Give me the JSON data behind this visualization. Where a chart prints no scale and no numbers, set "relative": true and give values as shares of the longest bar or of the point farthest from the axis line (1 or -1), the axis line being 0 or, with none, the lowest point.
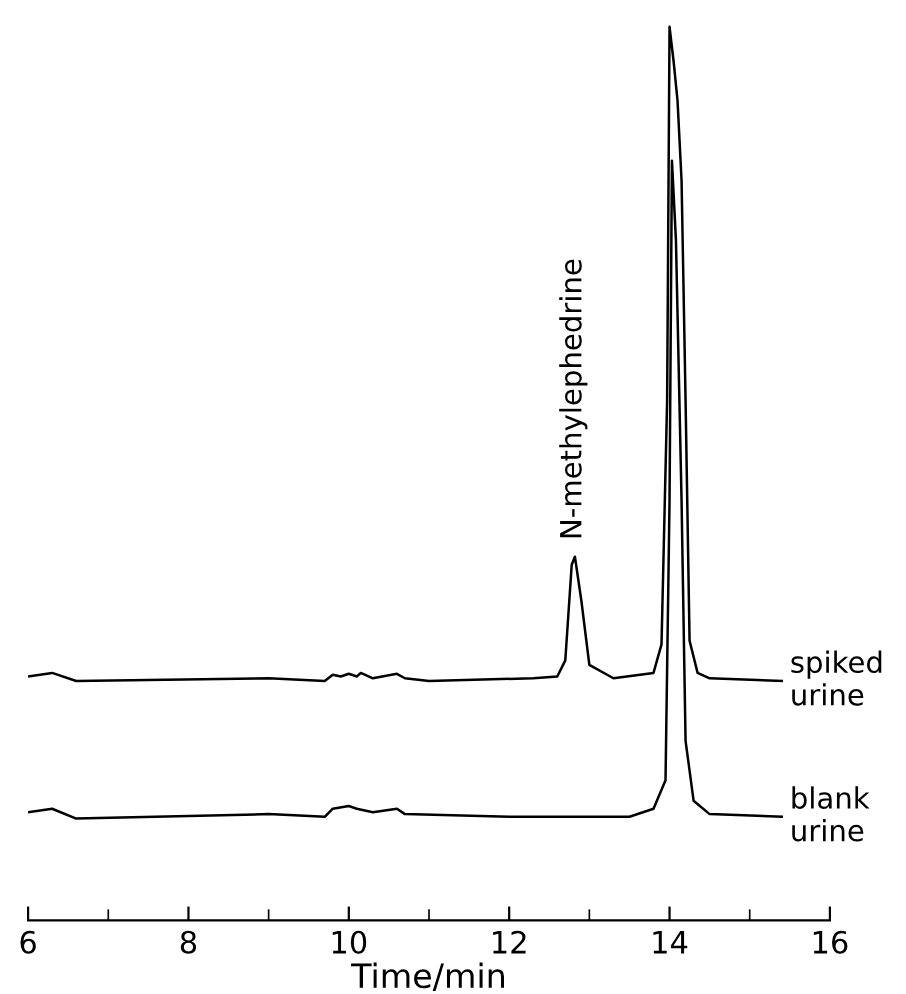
{
  "chart_data": {
    "type": "line",
    "xlabel": "Time/min",
    "relative": true,
    "xlim": [
      6,
      16
    ],
    "xticks": [
      6,
      {
        "value": 7,
        "label": null
      },
      8,
      {
        "value": 9,
        "label": null
      },
      10,
      {
        "value": 11,
        "label": null
      },
      12,
      {
        "value": 13,
        "label": null
      },
      14,
      {
        "value": 15,
        "label": null
      },
      16
    ],
    "tick_labels": "x",
    "grid": false,
    "legend": false,
    "marker": "none",
    "line_style": "solid",
    "annotations": [
      {
        "text": "N-methylephedrine",
        "x": 12.8,
        "y": 0.407
      }
    ],
    "series": [
      {
        "name": "spiked urine",
        "color": "#000000",
        "x": [
          6.0,
          6.3,
          6.6,
          9.0,
          9.7,
          9.8,
          9.9,
          10.0,
          10.1,
          10.15,
          10.3,
          10.6,
          10.7,
          11.0,
          12.3,
          12.6,
          12.7,
          12.78,
          12.82,
          12.9,
          13.0,
          13.3,
          13.8,
          13.9,
          13.97,
          14.0,
          14.05,
          14.1,
          14.15,
          14.2,
          14.25,
          14.35,
          14.5,
          15.4
        ],
        "values": [
          0.273,
          0.277,
          0.268,
          0.271,
          0.268,
          0.275,
          0.273,
          0.276,
          0.273,
          0.277,
          0.271,
          0.276,
          0.271,
          0.268,
          0.271,
          0.273,
          0.291,
          0.398,
          0.407,
          0.358,
          0.286,
          0.271,
          0.277,
          0.309,
          0.582,
          1,
          0.962,
          0.917,
          0.828,
          0.582,
          0.313,
          0.277,
          0.271,
          0.268
        ]
      },
      {
        "name": "blank urine",
        "color": "#000000",
        "x": [
          6.0,
          6.3,
          6.6,
          9.0,
          9.7,
          9.8,
          10.0,
          10.1,
          10.3,
          10.6,
          10.7,
          12.0,
          13.5,
          13.8,
          13.95,
          14.0,
          14.03,
          14.08,
          14.15,
          14.2,
          14.3,
          14.5,
          15.4
        ],
        "values": [
          0.121,
          0.125,
          0.114,
          0.119,
          0.116,
          0.125,
          0.128,
          0.125,
          0.121,
          0.125,
          0.119,
          0.116,
          0.116,
          0.125,
          0.157,
          0.47,
          0.85,
          0.761,
          0.47,
          0.201,
          0.134,
          0.119,
          0.116
        ]
      }
    ]
  }
}
